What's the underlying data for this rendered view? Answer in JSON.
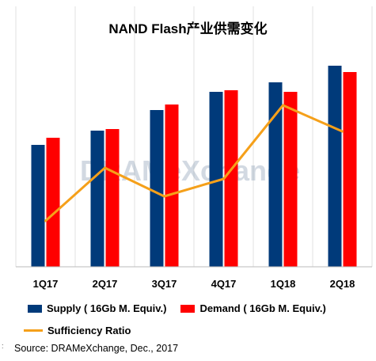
{
  "chart_data": {
    "type": "bar",
    "title": "NAND Flash产业供需变化",
    "categories": [
      "1Q17",
      "2Q17",
      "3Q17",
      "4Q17",
      "1Q18",
      "2Q18"
    ],
    "series": [
      {
        "name": "Supply ( 16Gb M. Equiv.)",
        "kind": "bar",
        "color": "#003a7a",
        "values": [
          154,
          172,
          198,
          221,
          233,
          254
        ]
      },
      {
        "name": "Demand ( 16Gb M. Equiv.)",
        "kind": "bar",
        "color": "#ff0000",
        "values": [
          163,
          174,
          205,
          223,
          221,
          246
        ]
      },
      {
        "name": "Sufficiency Ratio",
        "kind": "line",
        "color": "#f5a01a",
        "values": [
          58,
          125,
          89,
          111,
          204,
          171
        ]
      }
    ],
    "ylim": [
      0,
      290
    ],
    "grid": false,
    "legend_position": "bottom",
    "watermark": "DRAMeXchange",
    "source": "Source: DRAMeXchange, Dec., 2017"
  }
}
